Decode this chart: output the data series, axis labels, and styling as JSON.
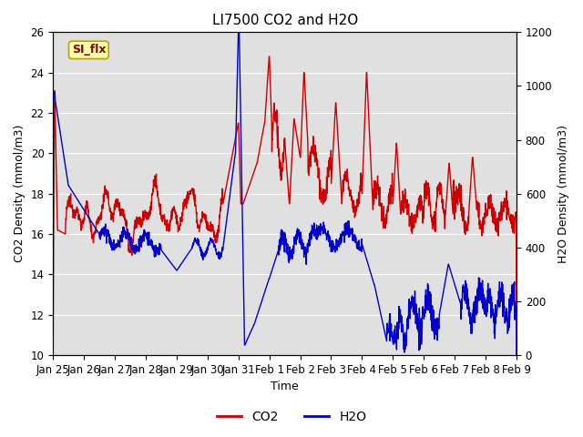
{
  "title": "LI7500 CO2 and H2O",
  "xlabel": "Time",
  "ylabel_left": "CO2 Density (mmol/m3)",
  "ylabel_right": "H2O Density (mmol/m3)",
  "ylim_left": [
    10,
    26
  ],
  "ylim_right": [
    0,
    1200
  ],
  "yticks_left": [
    10,
    12,
    14,
    16,
    18,
    20,
    22,
    24,
    26
  ],
  "yticks_right": [
    0,
    200,
    400,
    600,
    800,
    1000,
    1200
  ],
  "xtick_labels": [
    "Jan 25",
    "Jan 26",
    "Jan 27",
    "Jan 28",
    "Jan 29",
    "Jan 30",
    "Jan 31",
    "Feb 1",
    "Feb 2",
    "Feb 3",
    "Feb 4",
    "Feb 5",
    "Feb 6",
    "Feb 7",
    "Feb 8",
    "Feb 9"
  ],
  "annotation_text": "SI_flx",
  "background_color": "#e0e0e0",
  "co2_color": "#cc0000",
  "h2o_color": "#0000cc",
  "legend_co2": "CO2",
  "legend_h2o": "H2O",
  "title_fontsize": 11,
  "axis_label_fontsize": 9,
  "tick_fontsize": 8.5,
  "linewidth": 1.0
}
